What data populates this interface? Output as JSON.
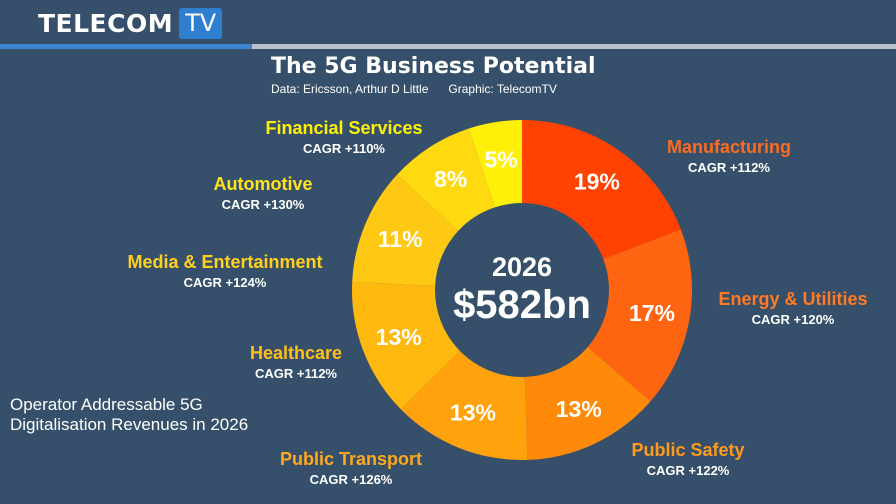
{
  "brand": {
    "name": "TELECOM",
    "suffix": "TV"
  },
  "header": {
    "title": "The 5G Business Potential",
    "subtitle": "Data: Ericsson, Arthur D Little      Graphic: TelecomTV"
  },
  "caption": "Operator Addressable 5G Digitalisation Revenues in 2026",
  "chart_data": {
    "type": "pie",
    "donut": true,
    "center_year": "2026",
    "center_value": "$582bn",
    "segments": [
      {
        "name": "Manufacturing",
        "value": 19,
        "label": "19%",
        "cagr": "CAGR +112%",
        "color": "#ff4200",
        "label_color": "#ff6a1e"
      },
      {
        "name": "Energy & Utilities",
        "value": 17,
        "label": "17%",
        "cagr": "CAGR +120%",
        "color": "#ff6410",
        "label_color": "#ff7a22"
      },
      {
        "name": "Public Safety",
        "value": 13,
        "label": "13%",
        "cagr": "CAGR +122%",
        "color": "#ff8a0a",
        "label_color": "#ff9a1a"
      },
      {
        "name": "Public Transport",
        "value": 13,
        "label": "13%",
        "cagr": "CAGR +126%",
        "color": "#ffa20c",
        "label_color": "#ffa81c"
      },
      {
        "name": "Healthcare",
        "value": 13,
        "label": "13%",
        "cagr": "CAGR +112%",
        "color": "#ffb80e",
        "label_color": "#ffbf1a"
      },
      {
        "name": "Media & Entertainment",
        "value": 11,
        "label": "11%",
        "cagr": "CAGR +124%",
        "color": "#ffc812",
        "label_color": "#ffd01c"
      },
      {
        "name": "Automotive",
        "value": 8,
        "label": "8%",
        "cagr": "CAGR +130%",
        "color": "#ffda10",
        "label_color": "#ffe21a"
      },
      {
        "name": "Financial Services",
        "value": 5,
        "label": "5%",
        "cagr": "CAGR +110%",
        "color": "#fff00a",
        "label_color": "#fff200"
      }
    ]
  }
}
